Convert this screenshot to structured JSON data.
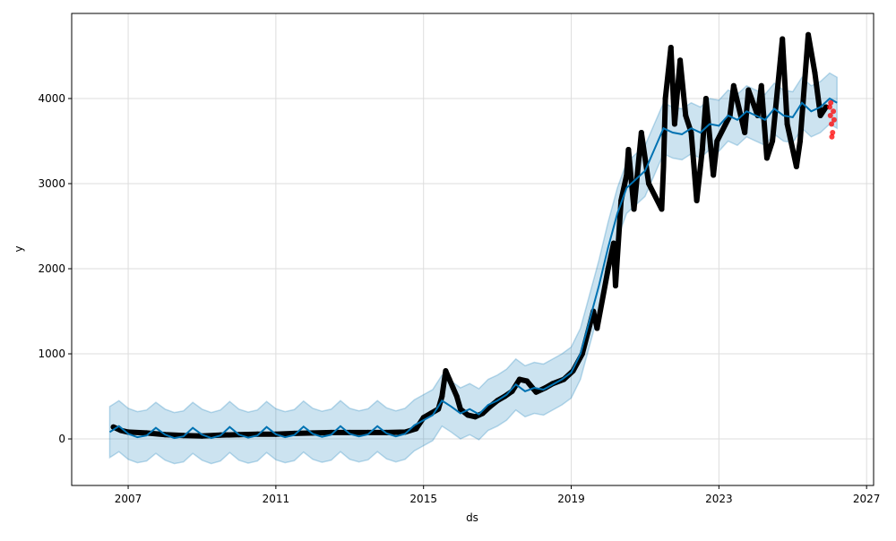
{
  "chart_data": {
    "type": "line",
    "title": "",
    "xlabel": "ds",
    "ylabel": "y",
    "xlim": [
      2005.47,
      2027.19
    ],
    "ylim": [
      -547,
      5000
    ],
    "grid": true,
    "x_ticks": [
      2007,
      2011,
      2015,
      2019,
      2023,
      2027
    ],
    "x_tick_labels": [
      "2007",
      "2011",
      "2015",
      "2019",
      "2023",
      "2027"
    ],
    "y_ticks": [
      0,
      1000,
      2000,
      3000,
      4000
    ],
    "y_tick_labels": [
      "0",
      "1000",
      "2000",
      "3000",
      "4000"
    ],
    "colors": {
      "observed": "#000000",
      "forecast": "#0072B2",
      "interval": "#0072B2",
      "test": "#ff0000"
    },
    "uncertainty_halfwidth": 300,
    "forecast_yhat": [
      [
        2006.5,
        80
      ],
      [
        2006.75,
        150
      ],
      [
        2007,
        60
      ],
      [
        2007.25,
        20
      ],
      [
        2007.5,
        40
      ],
      [
        2007.75,
        130
      ],
      [
        2008,
        50
      ],
      [
        2008.25,
        10
      ],
      [
        2008.5,
        30
      ],
      [
        2008.75,
        130
      ],
      [
        2009,
        50
      ],
      [
        2009.25,
        10
      ],
      [
        2009.5,
        40
      ],
      [
        2009.75,
        140
      ],
      [
        2010,
        50
      ],
      [
        2010.25,
        15
      ],
      [
        2010.5,
        40
      ],
      [
        2010.75,
        140
      ],
      [
        2011,
        55
      ],
      [
        2011.25,
        20
      ],
      [
        2011.5,
        45
      ],
      [
        2011.75,
        145
      ],
      [
        2012,
        60
      ],
      [
        2012.25,
        25
      ],
      [
        2012.5,
        50
      ],
      [
        2012.75,
        150
      ],
      [
        2013,
        60
      ],
      [
        2013.25,
        30
      ],
      [
        2013.5,
        55
      ],
      [
        2013.75,
        150
      ],
      [
        2014,
        65
      ],
      [
        2014.25,
        30
      ],
      [
        2014.5,
        60
      ],
      [
        2014.75,
        160
      ],
      [
        2015,
        220
      ],
      [
        2015.25,
        280
      ],
      [
        2015.5,
        450
      ],
      [
        2015.75,
        380
      ],
      [
        2016,
        300
      ],
      [
        2016.25,
        350
      ],
      [
        2016.5,
        290
      ],
      [
        2016.75,
        400
      ],
      [
        2017,
        450
      ],
      [
        2017.25,
        520
      ],
      [
        2017.5,
        640
      ],
      [
        2017.75,
        560
      ],
      [
        2018,
        600
      ],
      [
        2018.25,
        580
      ],
      [
        2018.5,
        640
      ],
      [
        2018.75,
        700
      ],
      [
        2019,
        780
      ],
      [
        2019.25,
        1000
      ],
      [
        2019.5,
        1400
      ],
      [
        2019.75,
        1800
      ],
      [
        2020,
        2250
      ],
      [
        2020.25,
        2650
      ],
      [
        2020.5,
        2950
      ],
      [
        2020.75,
        3050
      ],
      [
        2021,
        3150
      ],
      [
        2021.25,
        3400
      ],
      [
        2021.5,
        3650
      ],
      [
        2021.75,
        3600
      ],
      [
        2022,
        3580
      ],
      [
        2022.25,
        3650
      ],
      [
        2022.5,
        3600
      ],
      [
        2022.75,
        3700
      ],
      [
        2023,
        3680
      ],
      [
        2023.25,
        3800
      ],
      [
        2023.5,
        3750
      ],
      [
        2023.75,
        3850
      ],
      [
        2024,
        3800
      ],
      [
        2024.25,
        3750
      ],
      [
        2024.5,
        3880
      ],
      [
        2024.75,
        3800
      ],
      [
        2025,
        3780
      ],
      [
        2025.25,
        3950
      ],
      [
        2025.5,
        3850
      ],
      [
        2025.75,
        3900
      ],
      [
        2026,
        4000
      ],
      [
        2026.2,
        3950
      ]
    ],
    "observed": [
      [
        2006.6,
        140
      ],
      [
        2006.8,
        100
      ],
      [
        2007,
        80
      ],
      [
        2007.5,
        70
      ],
      [
        2008,
        50
      ],
      [
        2008.5,
        40
      ],
      [
        2009,
        35
      ],
      [
        2009.5,
        45
      ],
      [
        2010,
        50
      ],
      [
        2010.5,
        55
      ],
      [
        2011,
        55
      ],
      [
        2011.5,
        65
      ],
      [
        2012,
        70
      ],
      [
        2012.5,
        75
      ],
      [
        2013,
        75
      ],
      [
        2013.5,
        75
      ],
      [
        2014,
        75
      ],
      [
        2014.5,
        80
      ],
      [
        2014.8,
        120
      ],
      [
        2015,
        250
      ],
      [
        2015.2,
        300
      ],
      [
        2015.4,
        350
      ],
      [
        2015.5,
        500
      ],
      [
        2015.6,
        800
      ],
      [
        2015.7,
        700
      ],
      [
        2015.8,
        600
      ],
      [
        2015.9,
        500
      ],
      [
        2016,
        350
      ],
      [
        2016.2,
        280
      ],
      [
        2016.4,
        260
      ],
      [
        2016.6,
        300
      ],
      [
        2016.8,
        380
      ],
      [
        2017,
        450
      ],
      [
        2017.2,
        500
      ],
      [
        2017.4,
        560
      ],
      [
        2017.6,
        700
      ],
      [
        2017.8,
        680
      ],
      [
        2018.05,
        550
      ],
      [
        2018.3,
        600
      ],
      [
        2018.5,
        650
      ],
      [
        2018.8,
        700
      ],
      [
        2019.05,
        800
      ],
      [
        2019.3,
        1000
      ],
      [
        2019.6,
        1500
      ],
      [
        2019.7,
        1300
      ],
      [
        2020,
        2000
      ],
      [
        2020.15,
        2300
      ],
      [
        2020.2,
        1800
      ],
      [
        2020.35,
        2800
      ],
      [
        2020.5,
        3100
      ],
      [
        2020.55,
        3400
      ],
      [
        2020.7,
        2700
      ],
      [
        2020.9,
        3600
      ],
      [
        2021.1,
        3000
      ],
      [
        2021.45,
        2700
      ],
      [
        2021.5,
        3200
      ],
      [
        2021.55,
        4000
      ],
      [
        2021.7,
        4600
      ],
      [
        2021.8,
        3700
      ],
      [
        2021.95,
        4450
      ],
      [
        2022.1,
        3800
      ],
      [
        2022.25,
        3600
      ],
      [
        2022.4,
        2800
      ],
      [
        2022.55,
        3400
      ],
      [
        2022.65,
        4000
      ],
      [
        2022.85,
        3100
      ],
      [
        2022.95,
        3500
      ],
      [
        2023.3,
        3800
      ],
      [
        2023.4,
        4150
      ],
      [
        2023.7,
        3600
      ],
      [
        2023.8,
        4100
      ],
      [
        2024.05,
        3800
      ],
      [
        2024.15,
        4150
      ],
      [
        2024.3,
        3300
      ],
      [
        2024.45,
        3500
      ],
      [
        2024.72,
        4700
      ],
      [
        2024.85,
        3700
      ],
      [
        2025.1,
        3200
      ],
      [
        2025.2,
        3500
      ],
      [
        2025.42,
        4750
      ],
      [
        2025.6,
        4300
      ],
      [
        2025.75,
        3800
      ],
      [
        2025.9,
        3900
      ]
    ],
    "test_points": [
      [
        2026.0,
        3900
      ],
      [
        2026.02,
        3800
      ],
      [
        2026.03,
        3950
      ],
      [
        2026.05,
        3700
      ],
      [
        2026.08,
        3600
      ],
      [
        2026.1,
        3850
      ],
      [
        2026.12,
        3750
      ],
      [
        2026.06,
        3550
      ]
    ]
  }
}
